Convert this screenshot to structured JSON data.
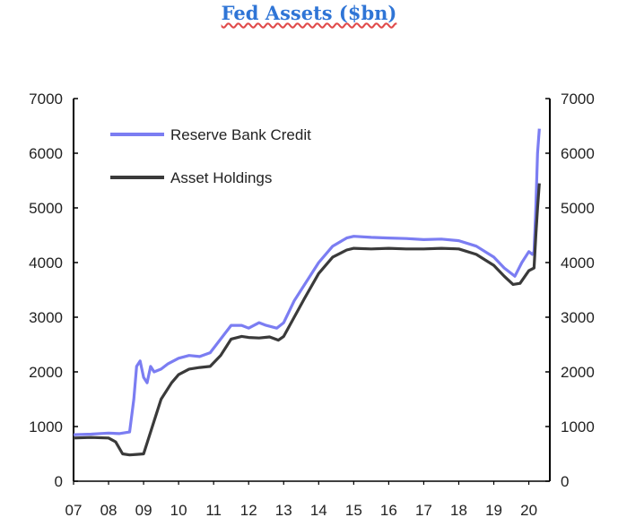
{
  "title": "Fed Assets ($bn)",
  "chart_data": {
    "type": "line",
    "title": "Fed Assets ($bn)",
    "xlabel": "",
    "ylabel": "",
    "xlim": [
      2007.0,
      2020.6
    ],
    "ylim": [
      0,
      7000
    ],
    "y_ticks": [
      0,
      1000,
      2000,
      3000,
      4000,
      5000,
      6000,
      7000
    ],
    "y_tick_labels": [
      "0",
      "1000",
      "2000",
      "3000",
      "4000",
      "5000",
      "6000",
      "7000"
    ],
    "x_tick_labels": [
      "07",
      "08",
      "09",
      "10",
      "11",
      "12",
      "13",
      "14",
      "15",
      "16",
      "17",
      "18",
      "19",
      "20"
    ],
    "grid": false,
    "legend_position": "top-left",
    "series": [
      {
        "name": "Reserve Bank Credit",
        "color": "#7b7df2",
        "x": [
          2007.0,
          2007.5,
          2008.0,
          2008.3,
          2008.6,
          2008.72,
          2008.8,
          2008.9,
          2009.0,
          2009.1,
          2009.2,
          2009.3,
          2009.5,
          2009.7,
          2010.0,
          2010.3,
          2010.6,
          2010.9,
          2011.2,
          2011.5,
          2011.8,
          2012.0,
          2012.3,
          2012.5,
          2012.8,
          2013.0,
          2013.3,
          2013.6,
          2014.0,
          2014.4,
          2014.8,
          2015.0,
          2015.5,
          2016.0,
          2016.5,
          2017.0,
          2017.5,
          2018.0,
          2018.5,
          2019.0,
          2019.3,
          2019.6,
          2019.8,
          2020.0,
          2020.1,
          2020.15,
          2020.2,
          2020.25,
          2020.3
        ],
        "values": [
          850,
          860,
          880,
          870,
          900,
          1500,
          2100,
          2200,
          1900,
          1800,
          2100,
          2000,
          2050,
          2150,
          2250,
          2300,
          2280,
          2350,
          2600,
          2850,
          2850,
          2800,
          2900,
          2850,
          2800,
          2900,
          3300,
          3600,
          4000,
          4300,
          4450,
          4480,
          4460,
          4450,
          4440,
          4420,
          4430,
          4400,
          4300,
          4100,
          3900,
          3750,
          4000,
          4200,
          4150,
          4200,
          5000,
          6000,
          6450
        ]
      },
      {
        "name": "Asset Holdings",
        "color": "#3a3a3a",
        "x": [
          2007.0,
          2007.5,
          2008.0,
          2008.2,
          2008.4,
          2008.6,
          2008.8,
          2009.0,
          2009.1,
          2009.3,
          2009.5,
          2009.8,
          2010.0,
          2010.3,
          2010.6,
          2010.9,
          2011.2,
          2011.5,
          2011.8,
          2012.0,
          2012.3,
          2012.6,
          2012.85,
          2013.0,
          2013.3,
          2013.6,
          2014.0,
          2014.4,
          2014.8,
          2015.0,
          2015.5,
          2016.0,
          2016.5,
          2017.0,
          2017.5,
          2018.0,
          2018.5,
          2019.0,
          2019.3,
          2019.55,
          2019.75,
          2020.0,
          2020.15,
          2020.2,
          2020.25,
          2020.3
        ],
        "values": [
          790,
          800,
          790,
          720,
          500,
          480,
          490,
          500,
          700,
          1100,
          1500,
          1800,
          1950,
          2050,
          2080,
          2100,
          2300,
          2600,
          2650,
          2630,
          2620,
          2640,
          2580,
          2650,
          3000,
          3350,
          3800,
          4100,
          4230,
          4260,
          4250,
          4260,
          4250,
          4250,
          4260,
          4250,
          4150,
          3950,
          3750,
          3600,
          3620,
          3850,
          3900,
          4500,
          5000,
          5450
        ]
      }
    ]
  }
}
